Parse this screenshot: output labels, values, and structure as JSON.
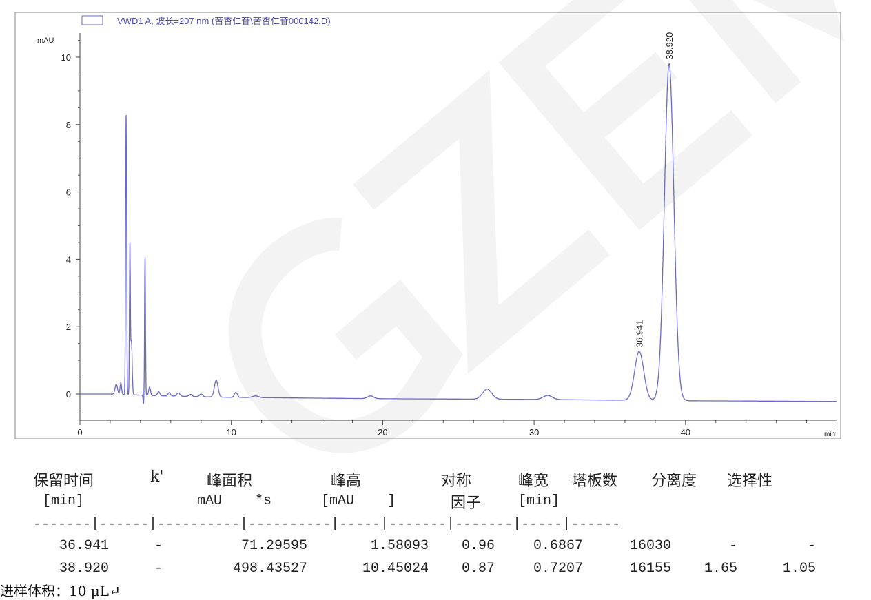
{
  "chart_data": {
    "type": "line",
    "legend": "VWD1 A, 波长=207 nm (苦杏仁苷\\苦杏仁苷000142.D)",
    "legend_placement": "top-left",
    "ylabel": "mAU",
    "xlabel": "min",
    "xlim": [
      0,
      50
    ],
    "ylim": [
      -0.8,
      10.8
    ],
    "x_ticks": [
      0,
      10,
      20,
      30,
      40
    ],
    "y_ticks": [
      0,
      2,
      4,
      6,
      8,
      10
    ],
    "grid": false,
    "line_color": "#6a6acb",
    "peaks": [
      {
        "rt": 2.4,
        "height": 0.3,
        "width": 0.08
      },
      {
        "rt": 2.7,
        "height": 0.35,
        "width": 0.05
      },
      {
        "rt": 3.05,
        "height": 8.3,
        "width": 0.035
      },
      {
        "rt": 3.3,
        "height": 4.3,
        "width": 0.03
      },
      {
        "rt": 3.4,
        "height": 1.6,
        "width": 0.05
      },
      {
        "rt": 4.3,
        "height": 4.1,
        "width": 0.03
      },
      {
        "rt": 4.6,
        "height": 0.25,
        "width": 0.06
      },
      {
        "rt": 5.2,
        "height": 0.12,
        "width": 0.08
      },
      {
        "rt": 5.9,
        "height": 0.1,
        "width": 0.08
      },
      {
        "rt": 6.5,
        "height": 0.1,
        "width": 0.1
      },
      {
        "rt": 7.3,
        "height": 0.06,
        "width": 0.1
      },
      {
        "rt": 8.0,
        "height": 0.08,
        "width": 0.1
      },
      {
        "rt": 9.0,
        "height": 0.5,
        "width": 0.12
      },
      {
        "rt": 10.3,
        "height": 0.15,
        "width": 0.1
      },
      {
        "rt": 11.6,
        "height": 0.05,
        "width": 0.2
      },
      {
        "rt": 19.2,
        "height": 0.08,
        "width": 0.2
      },
      {
        "rt": 26.9,
        "height": 0.3,
        "width": 0.3
      },
      {
        "rt": 30.9,
        "height": 0.12,
        "width": 0.3
      },
      {
        "rt": 36.941,
        "height": 1.45,
        "width": 0.3,
        "label": "36.941"
      },
      {
        "rt": 38.92,
        "height": 10.0,
        "width": 0.31,
        "label": "38.920"
      }
    ],
    "baseline": [
      [
        0,
        0
      ],
      [
        2,
        0
      ],
      [
        5,
        -0.05
      ],
      [
        10,
        -0.1
      ],
      [
        20,
        -0.14
      ],
      [
        30,
        -0.16
      ],
      [
        40,
        -0.2
      ],
      [
        50,
        -0.22
      ]
    ]
  },
  "watermark": "GZEM",
  "table": {
    "headers": [
      "保留时间",
      "k'",
      "峰面积",
      "峰高",
      "对称",
      "峰宽",
      "塔板数",
      "分离度",
      "选择性"
    ],
    "subheaders": [
      "[min]",
      "mAU    *s",
      "[mAU    ]",
      "因子",
      "[min]"
    ],
    "separator": "-------|------|----------|----------|-----|-------|-------|-----|------",
    "rows": [
      [
        "36.941",
        "-",
        "71.29595",
        "1.58093",
        "0.96",
        "0.6867",
        "16030",
        "-",
        "-"
      ],
      [
        "38.920",
        "-",
        "498.43527",
        "10.45024",
        "0.87",
        "0.7207",
        "16155",
        "1.65",
        "1.05"
      ]
    ]
  },
  "footer": "进样体积：10 μL↵"
}
